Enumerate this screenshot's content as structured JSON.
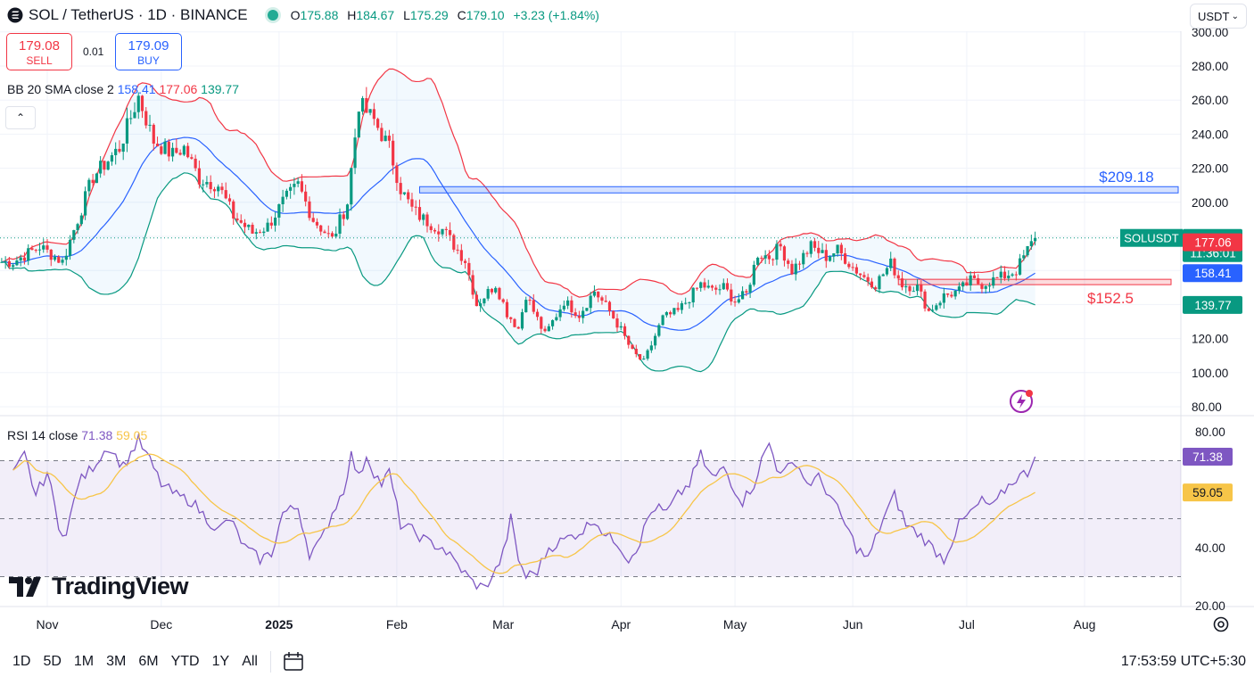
{
  "header": {
    "title": "SOL / TetherUS · 1D · BINANCE",
    "o_label": "O",
    "o": "175.88",
    "h_label": "H",
    "h": "184.67",
    "l_label": "L",
    "l": "175.29",
    "c_label": "C",
    "c": "179.10",
    "change": "+3.23 (+1.84%)",
    "currency": "USDT"
  },
  "trade": {
    "sell_price": "179.08",
    "sell_label": "SELL",
    "spread": "0.01",
    "buy_price": "179.09",
    "buy_label": "BUY"
  },
  "bb_legend": {
    "name": "BB 20 SMA close 2",
    "basis": "158.41",
    "upper": "177.06",
    "lower": "139.77"
  },
  "rsi_legend": {
    "name": "RSI 14 close",
    "rsi": "71.38",
    "sma": "59.05"
  },
  "branding": "TradingView",
  "timeframes": [
    "1D",
    "5D",
    "1M",
    "3M",
    "6M",
    "YTD",
    "1Y",
    "All"
  ],
  "clock": "17:53:59 UTC+5:30",
  "colors": {
    "up": "#089981",
    "down": "#f23645",
    "basis": "#2962ff",
    "upper": "#f23645",
    "lower": "#089981",
    "rsi": "#7e57c2",
    "rsi_sma": "#f7c548",
    "zone": "#2962ff"
  },
  "chart_data": [
    {
      "type": "candlestick",
      "title": "SOL / TetherUS · 1D · BINANCE",
      "x_ticks": [
        {
          "label": "Nov",
          "day": 0
        },
        {
          "label": "Dec",
          "day": 30
        },
        {
          "label": "2025",
          "day": 61
        },
        {
          "label": "Feb",
          "day": 92
        },
        {
          "label": "Mar",
          "day": 120
        },
        {
          "label": "Apr",
          "day": 151
        },
        {
          "label": "May",
          "day": 181
        },
        {
          "label": "Jun",
          "day": 212
        },
        {
          "label": "Jul",
          "day": 242
        },
        {
          "label": "Aug",
          "day": 273
        }
      ],
      "y_ticks": [
        "80.00",
        "100.00",
        "120.00",
        "140.00",
        "160.00",
        "180.00",
        "200.00",
        "220.00",
        "240.00",
        "260.00",
        "280.00",
        "300.00"
      ],
      "ylim": [
        78,
        300
      ],
      "last_price": {
        "value": 179.1,
        "symbol": "SOLUSDT",
        "countdown": "11:36:01"
      },
      "bb_last": {
        "upper": 177.06,
        "basis": 158.41,
        "lower": 139.77
      },
      "series_keypoints": [
        [
          -9,
          165
        ],
        [
          -2,
          174
        ],
        [
          4,
          165
        ],
        [
          12,
          215
        ],
        [
          19,
          232
        ],
        [
          24,
          262
        ],
        [
          28,
          236
        ],
        [
          33,
          228
        ],
        [
          36,
          232
        ],
        [
          40,
          214
        ],
        [
          45,
          210
        ],
        [
          49,
          192
        ],
        [
          54,
          182
        ],
        [
          58,
          186
        ],
        [
          62,
          200
        ],
        [
          66,
          210
        ],
        [
          70,
          190
        ],
        [
          75,
          178
        ],
        [
          79,
          200
        ],
        [
          82,
          258
        ],
        [
          86,
          248
        ],
        [
          90,
          232
        ],
        [
          93,
          208
        ],
        [
          96,
          196
        ],
        [
          99,
          190
        ],
        [
          104,
          184
        ],
        [
          108,
          172
        ],
        [
          110,
          166
        ],
        [
          113,
          140
        ],
        [
          118,
          152
        ],
        [
          121,
          135
        ],
        [
          124,
          126
        ],
        [
          126,
          146
        ],
        [
          128,
          136
        ],
        [
          131,
          122
        ],
        [
          136,
          142
        ],
        [
          140,
          134
        ],
        [
          144,
          148
        ],
        [
          148,
          136
        ],
        [
          151,
          125
        ],
        [
          154,
          112
        ],
        [
          157,
          106
        ],
        [
          162,
          132
        ],
        [
          166,
          136
        ],
        [
          172,
          152
        ],
        [
          175,
          148
        ],
        [
          178,
          150
        ],
        [
          181,
          142
        ],
        [
          184,
          146
        ],
        [
          187,
          170
        ],
        [
          190,
          168
        ],
        [
          193,
          174
        ],
        [
          196,
          160
        ],
        [
          201,
          174
        ],
        [
          205,
          168
        ],
        [
          208,
          172
        ],
        [
          212,
          162
        ],
        [
          215,
          156
        ],
        [
          218,
          152
        ],
        [
          222,
          164
        ],
        [
          225,
          152
        ],
        [
          229,
          150
        ],
        [
          232,
          136
        ],
        [
          236,
          145
        ],
        [
          240,
          148
        ],
        [
          243,
          154
        ],
        [
          246,
          152
        ],
        [
          251,
          156
        ],
        [
          255,
          160
        ],
        [
          258,
          172
        ],
        [
          260,
          179.1
        ]
      ],
      "zones": [
        {
          "label": "$209.18",
          "low": 205.5,
          "high": 209.18,
          "from_day": 98
        },
        {
          "label": "$152.5",
          "low": 152.5,
          "high": 154.8,
          "from_day": 224
        }
      ]
    },
    {
      "type": "line",
      "title": "RSI 14 close",
      "ylim": [
        20,
        80
      ],
      "y_ticks": [
        "20.00",
        "40.00",
        "60.00",
        "80.00"
      ],
      "bands": [
        30,
        50,
        70
      ],
      "last": {
        "rsi": 71.38,
        "sma": 59.05
      },
      "rsi_keypoints": [
        [
          -9,
          65
        ],
        [
          -6,
          72
        ],
        [
          -3,
          58
        ],
        [
          0,
          66
        ],
        [
          3,
          48
        ],
        [
          5,
          44
        ],
        [
          8,
          62
        ],
        [
          12,
          68
        ],
        [
          16,
          75
        ],
        [
          20,
          68
        ],
        [
          24,
          77
        ],
        [
          27,
          70
        ],
        [
          30,
          62
        ],
        [
          34,
          58
        ],
        [
          38,
          56
        ],
        [
          42,
          50
        ],
        [
          45,
          46
        ],
        [
          48,
          50
        ],
        [
          52,
          40
        ],
        [
          56,
          36
        ],
        [
          59,
          38
        ],
        [
          62,
          52
        ],
        [
          66,
          54
        ],
        [
          69,
          38
        ],
        [
          72,
          42
        ],
        [
          75,
          52
        ],
        [
          78,
          60
        ],
        [
          80,
          72
        ],
        [
          82,
          64
        ],
        [
          84,
          72
        ],
        [
          86,
          66
        ],
        [
          88,
          62
        ],
        [
          90,
          66
        ],
        [
          93,
          48
        ],
        [
          96,
          46
        ],
        [
          100,
          42
        ],
        [
          104,
          40
        ],
        [
          108,
          34
        ],
        [
          112,
          28
        ],
        [
          115,
          26
        ],
        [
          118,
          32
        ],
        [
          120,
          38
        ],
        [
          122,
          50
        ],
        [
          124,
          36
        ],
        [
          126,
          30
        ],
        [
          129,
          32
        ],
        [
          132,
          40
        ],
        [
          135,
          42
        ],
        [
          138,
          44
        ],
        [
          141,
          46
        ],
        [
          144,
          50
        ],
        [
          147,
          44
        ],
        [
          150,
          42
        ],
        [
          153,
          36
        ],
        [
          156,
          42
        ],
        [
          158,
          50
        ],
        [
          160,
          54
        ],
        [
          163,
          52
        ],
        [
          166,
          58
        ],
        [
          169,
          62
        ],
        [
          172,
          72
        ],
        [
          174,
          66
        ],
        [
          176,
          64
        ],
        [
          178,
          68
        ],
        [
          181,
          60
        ],
        [
          183,
          56
        ],
        [
          186,
          62
        ],
        [
          188,
          70
        ],
        [
          190,
          76
        ],
        [
          192,
          68
        ],
        [
          194,
          66
        ],
        [
          197,
          70
        ],
        [
          200,
          62
        ],
        [
          203,
          64
        ],
        [
          206,
          58
        ],
        [
          210,
          48
        ],
        [
          213,
          40
        ],
        [
          216,
          36
        ],
        [
          220,
          50
        ],
        [
          223,
          58
        ],
        [
          226,
          48
        ],
        [
          230,
          44
        ],
        [
          233,
          40
        ],
        [
          236,
          36
        ],
        [
          240,
          48
        ],
        [
          243,
          52
        ],
        [
          246,
          56
        ],
        [
          249,
          54
        ],
        [
          252,
          60
        ],
        [
          255,
          64
        ],
        [
          258,
          66
        ],
        [
          260,
          71.38
        ]
      ]
    }
  ]
}
